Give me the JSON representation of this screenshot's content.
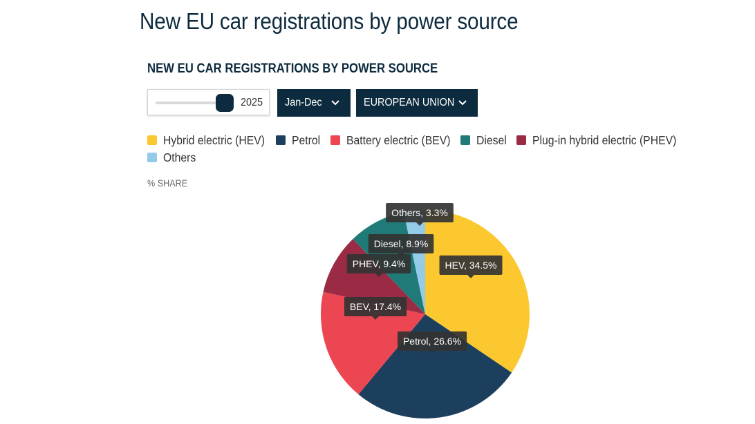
{
  "page": {
    "title": "New EU car registrations by power source"
  },
  "controls": {
    "year_value": "2025",
    "period_label": "Jan-Dec",
    "region_label": "EUROPEAN UNION"
  },
  "colors": {
    "navy": "#0d2b3e",
    "hev": "#fcc82f",
    "petrol": "#1c3f5e",
    "bev": "#ec4653",
    "diesel": "#1f7a78",
    "phev": "#9b2b45",
    "others": "#93cbe9"
  },
  "icons": {
    "dropdown": "chevron-down-icon"
  },
  "chart_data": {
    "type": "pie",
    "title": "NEW EU CAR REGISTRATIONS BY POWER SOURCE",
    "unit_label": "% SHARE",
    "legend_position": "top-left",
    "legend": [
      "Hybrid electric (HEV)",
      "Petrol",
      "Battery electric (BEV)",
      "Diesel",
      "Plug-in hybrid electric (PHEV)",
      "Others"
    ],
    "slices": [
      {
        "label": "HEV",
        "value": 34.5,
        "display": "HEV, 34.5%",
        "color": "#fcc82f"
      },
      {
        "label": "Petrol",
        "value": 26.6,
        "display": "Petrol, 26.6%",
        "color": "#1c3f5e"
      },
      {
        "label": "BEV",
        "value": 17.4,
        "display": "BEV, 17.4%",
        "color": "#ec4653"
      },
      {
        "label": "PHEV",
        "value": 9.4,
        "display": "PHEV, 9.4%",
        "color": "#9b2b45"
      },
      {
        "label": "Diesel",
        "value": 8.9,
        "display": "Diesel, 8.9%",
        "color": "#1f7a78"
      },
      {
        "label": "Others",
        "value": 3.3,
        "display": "Others, 3.3%",
        "color": "#93cbe9"
      }
    ]
  }
}
